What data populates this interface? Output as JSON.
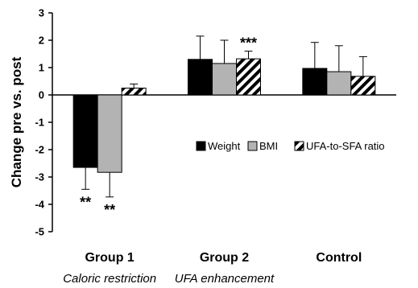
{
  "chart_data": {
    "type": "bar",
    "ylabel": "Change pre vs. post",
    "ylim": [
      -5,
      3
    ],
    "yticks": [
      3,
      2,
      1,
      0,
      -1,
      -2,
      -3,
      -4,
      -5
    ],
    "categories": [
      "Group 1",
      "Group 2",
      "Control"
    ],
    "category_sublabels": [
      "Caloric restriction",
      "UFA enhancement",
      ""
    ],
    "series": [
      {
        "name": "Weight",
        "values": [
          -2.65,
          1.3,
          0.97
        ],
        "errors": [
          0.8,
          0.85,
          0.95
        ],
        "fill": "#000000",
        "pattern": "solid"
      },
      {
        "name": "BMI",
        "values": [
          -2.83,
          1.15,
          0.85
        ],
        "errors": [
          0.9,
          0.85,
          0.95
        ],
        "fill": "#b3b3b3",
        "pattern": "solid"
      },
      {
        "name": "UFA-to-SFA ratio",
        "values": [
          0.25,
          1.32,
          0.68
        ],
        "errors": [
          0.15,
          0.28,
          0.72
        ],
        "fill": "#ffffff",
        "pattern": "diagonal-stripes"
      }
    ],
    "annotations": [
      {
        "category": 0,
        "series": 0,
        "text": "**"
      },
      {
        "category": 0,
        "series": 1,
        "text": "**"
      },
      {
        "category": 1,
        "series": 2,
        "text": "***"
      }
    ],
    "legend_position": "middle-right",
    "grid": false
  }
}
